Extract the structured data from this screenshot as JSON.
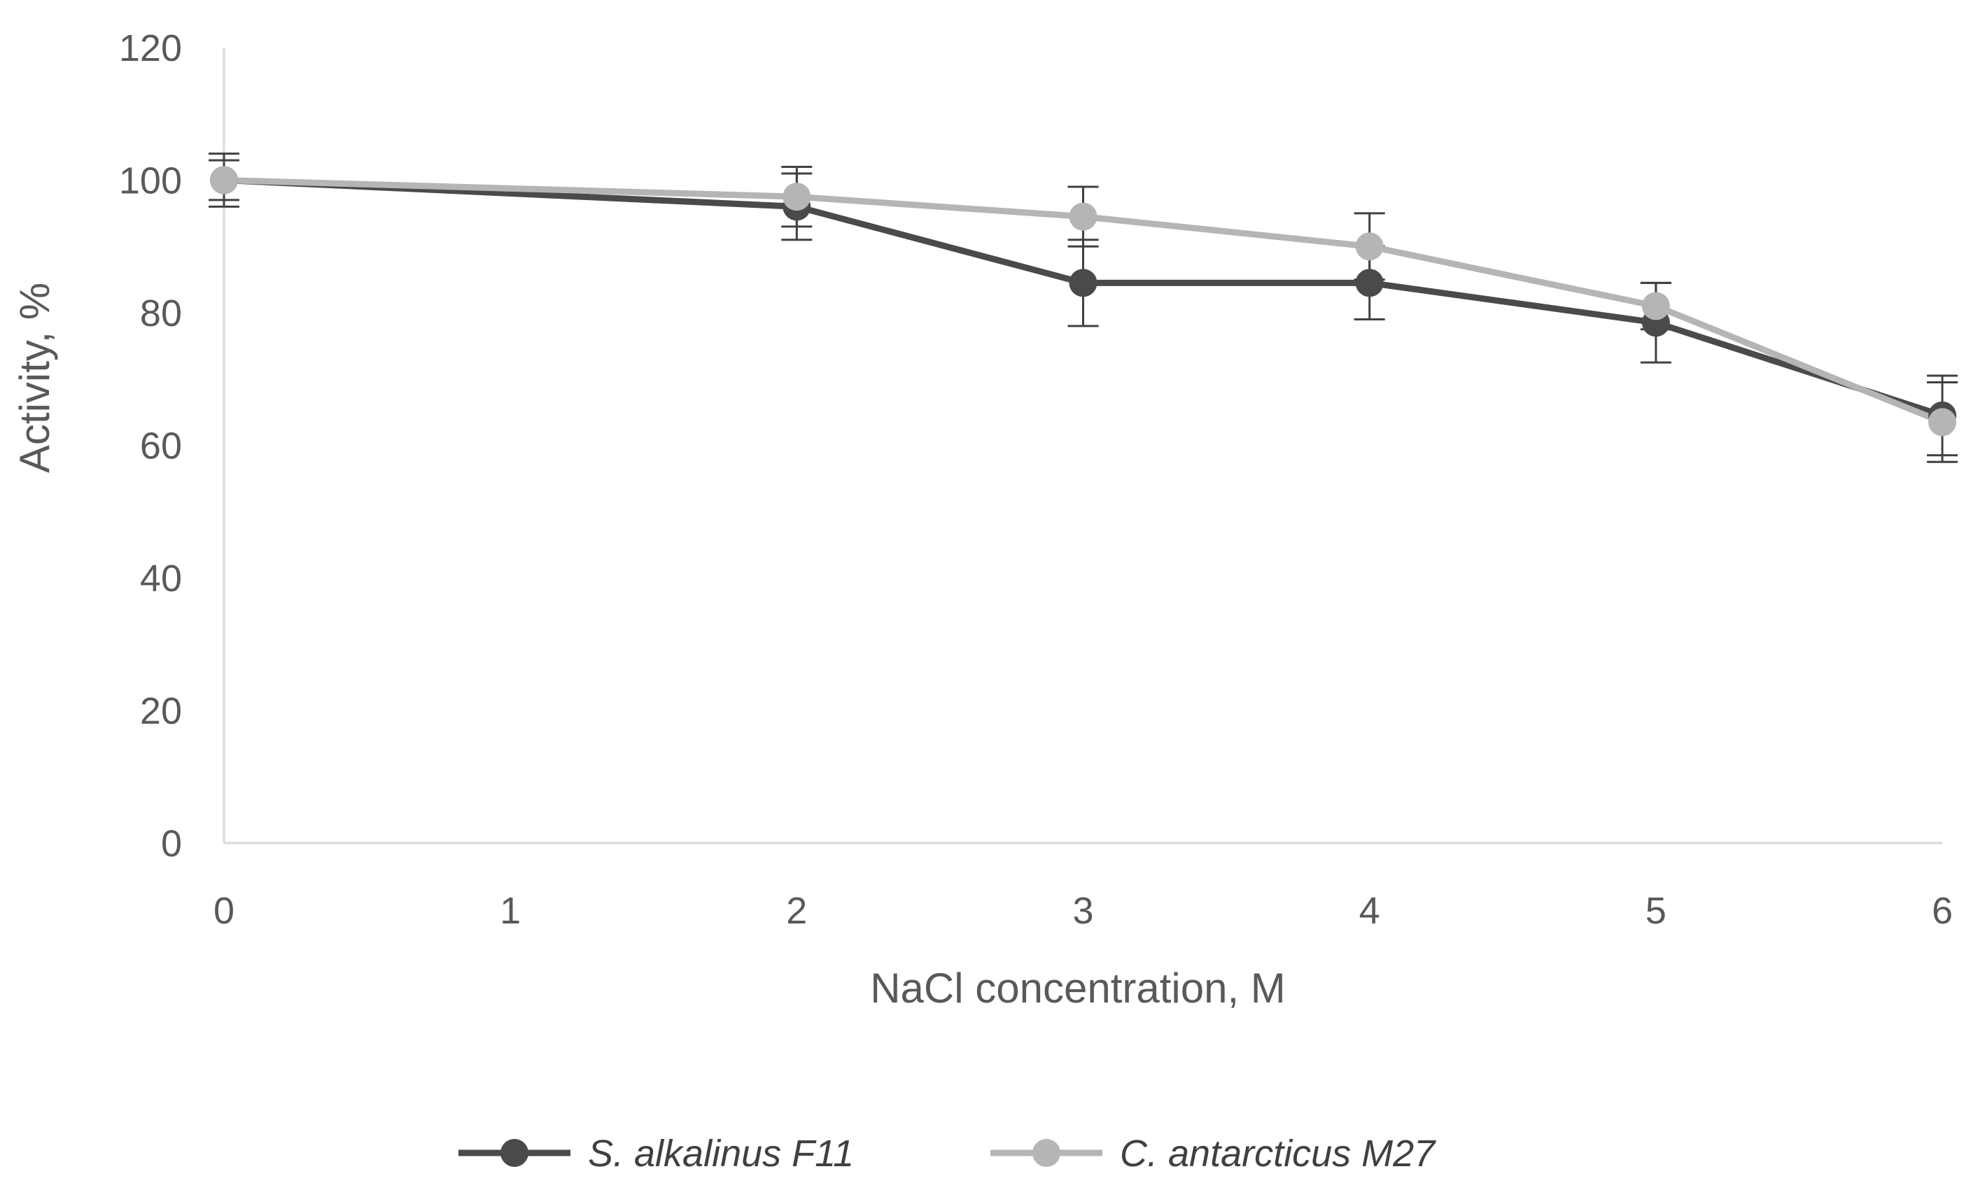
{
  "chart_data": {
    "type": "line",
    "title": "",
    "xlabel": "NaCl concentration, M",
    "ylabel": "Activity, %",
    "xlim": [
      0,
      6
    ],
    "ylim": [
      0,
      120
    ],
    "x_ticks": [
      0,
      1,
      2,
      3,
      4,
      5,
      6
    ],
    "y_ticks": [
      0,
      20,
      40,
      60,
      80,
      100,
      120
    ],
    "grid": false,
    "legend_position": "bottom",
    "error_bars": true,
    "series": [
      {
        "name": "S. alkalinus F11",
        "color": "#4a4a4a",
        "x": [
          0,
          2,
          3,
          4,
          5,
          6
        ],
        "y": [
          100,
          96,
          84.5,
          84.5,
          78.5,
          64.5
        ],
        "err": [
          4,
          5,
          6.5,
          5.5,
          6,
          6
        ]
      },
      {
        "name": "C. antarcticus M27",
        "color": "#b5b5b5",
        "x": [
          0,
          2,
          3,
          4,
          5,
          6
        ],
        "y": [
          100,
          97.5,
          94.5,
          90,
          81,
          63.5
        ],
        "err": [
          3,
          4.5,
          4.5,
          5,
          3.5,
          6
        ]
      }
    ],
    "axis_color": "#d9d9d9",
    "text_color": "#595959"
  }
}
